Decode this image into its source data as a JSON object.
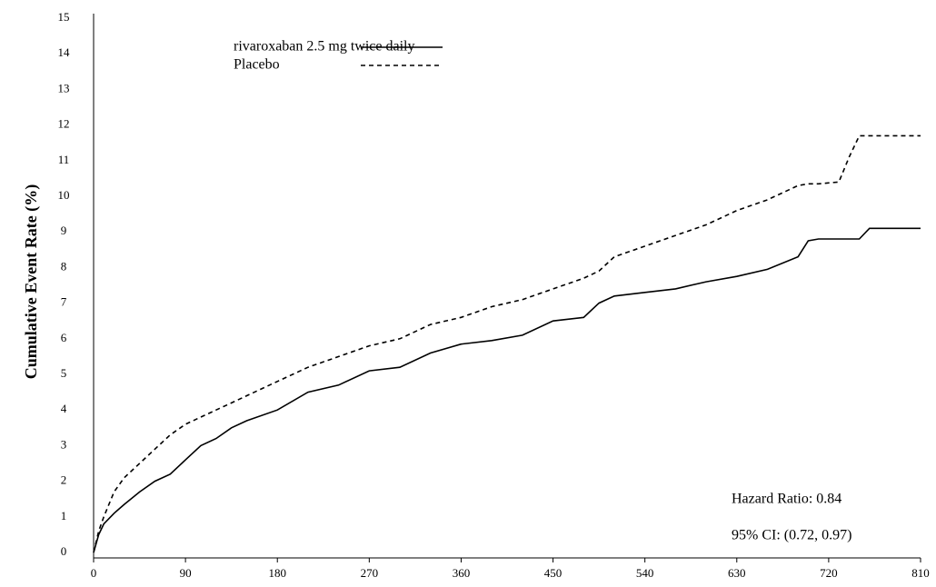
{
  "chart_data": {
    "type": "line",
    "y_label": "Cumulative Event Rate (%)",
    "annotations": [
      "Hazard Ratio: 0.84",
      "95% CI: (0.72, 0.97)"
    ],
    "x": [
      0,
      5,
      10,
      20,
      30,
      45,
      60,
      75,
      90,
      105,
      120,
      135,
      150,
      180,
      210,
      240,
      270,
      300,
      330,
      360,
      390,
      420,
      450,
      480,
      495,
      510,
      540,
      570,
      600,
      630,
      660,
      690,
      700,
      710,
      730,
      740,
      750,
      760,
      810
    ],
    "series": [
      {
        "name": "rivaroxaban 2.5 mg twice daily",
        "color": "#000000",
        "line_style": "solid",
        "values": [
          0,
          0.5,
          0.8,
          1.1,
          1.35,
          1.7,
          2.0,
          2.2,
          2.6,
          3.0,
          3.2,
          3.5,
          3.7,
          4.0,
          4.5,
          4.7,
          5.1,
          5.2,
          5.6,
          5.85,
          5.95,
          6.1,
          6.5,
          6.6,
          7.0,
          7.2,
          7.3,
          7.4,
          7.6,
          7.75,
          7.95,
          8.3,
          8.75,
          8.8,
          8.8,
          8.8,
          8.8,
          9.1,
          9.1
        ]
      },
      {
        "name": "Placebo",
        "color": "#000000",
        "line_style": "dashed",
        "values": [
          0,
          0.6,
          1.0,
          1.7,
          2.1,
          2.5,
          2.9,
          3.3,
          3.6,
          3.8,
          4.0,
          4.2,
          4.4,
          4.8,
          5.2,
          5.5,
          5.8,
          6.0,
          6.4,
          6.6,
          6.9,
          7.1,
          7.4,
          7.7,
          7.9,
          8.3,
          8.6,
          8.9,
          9.2,
          9.6,
          9.9,
          10.3,
          10.35,
          10.35,
          10.4,
          11.1,
          11.7,
          11.7,
          11.7
        ]
      }
    ],
    "xlim": [
      0,
      810
    ],
    "xticks": [
      0,
      90,
      180,
      270,
      360,
      450,
      540,
      630,
      720,
      810
    ],
    "ylim": [
      0,
      15
    ],
    "yticks": [
      0,
      1,
      2,
      3,
      4,
      5,
      6,
      7,
      8,
      9,
      10,
      11,
      12,
      13,
      14,
      15
    ]
  }
}
